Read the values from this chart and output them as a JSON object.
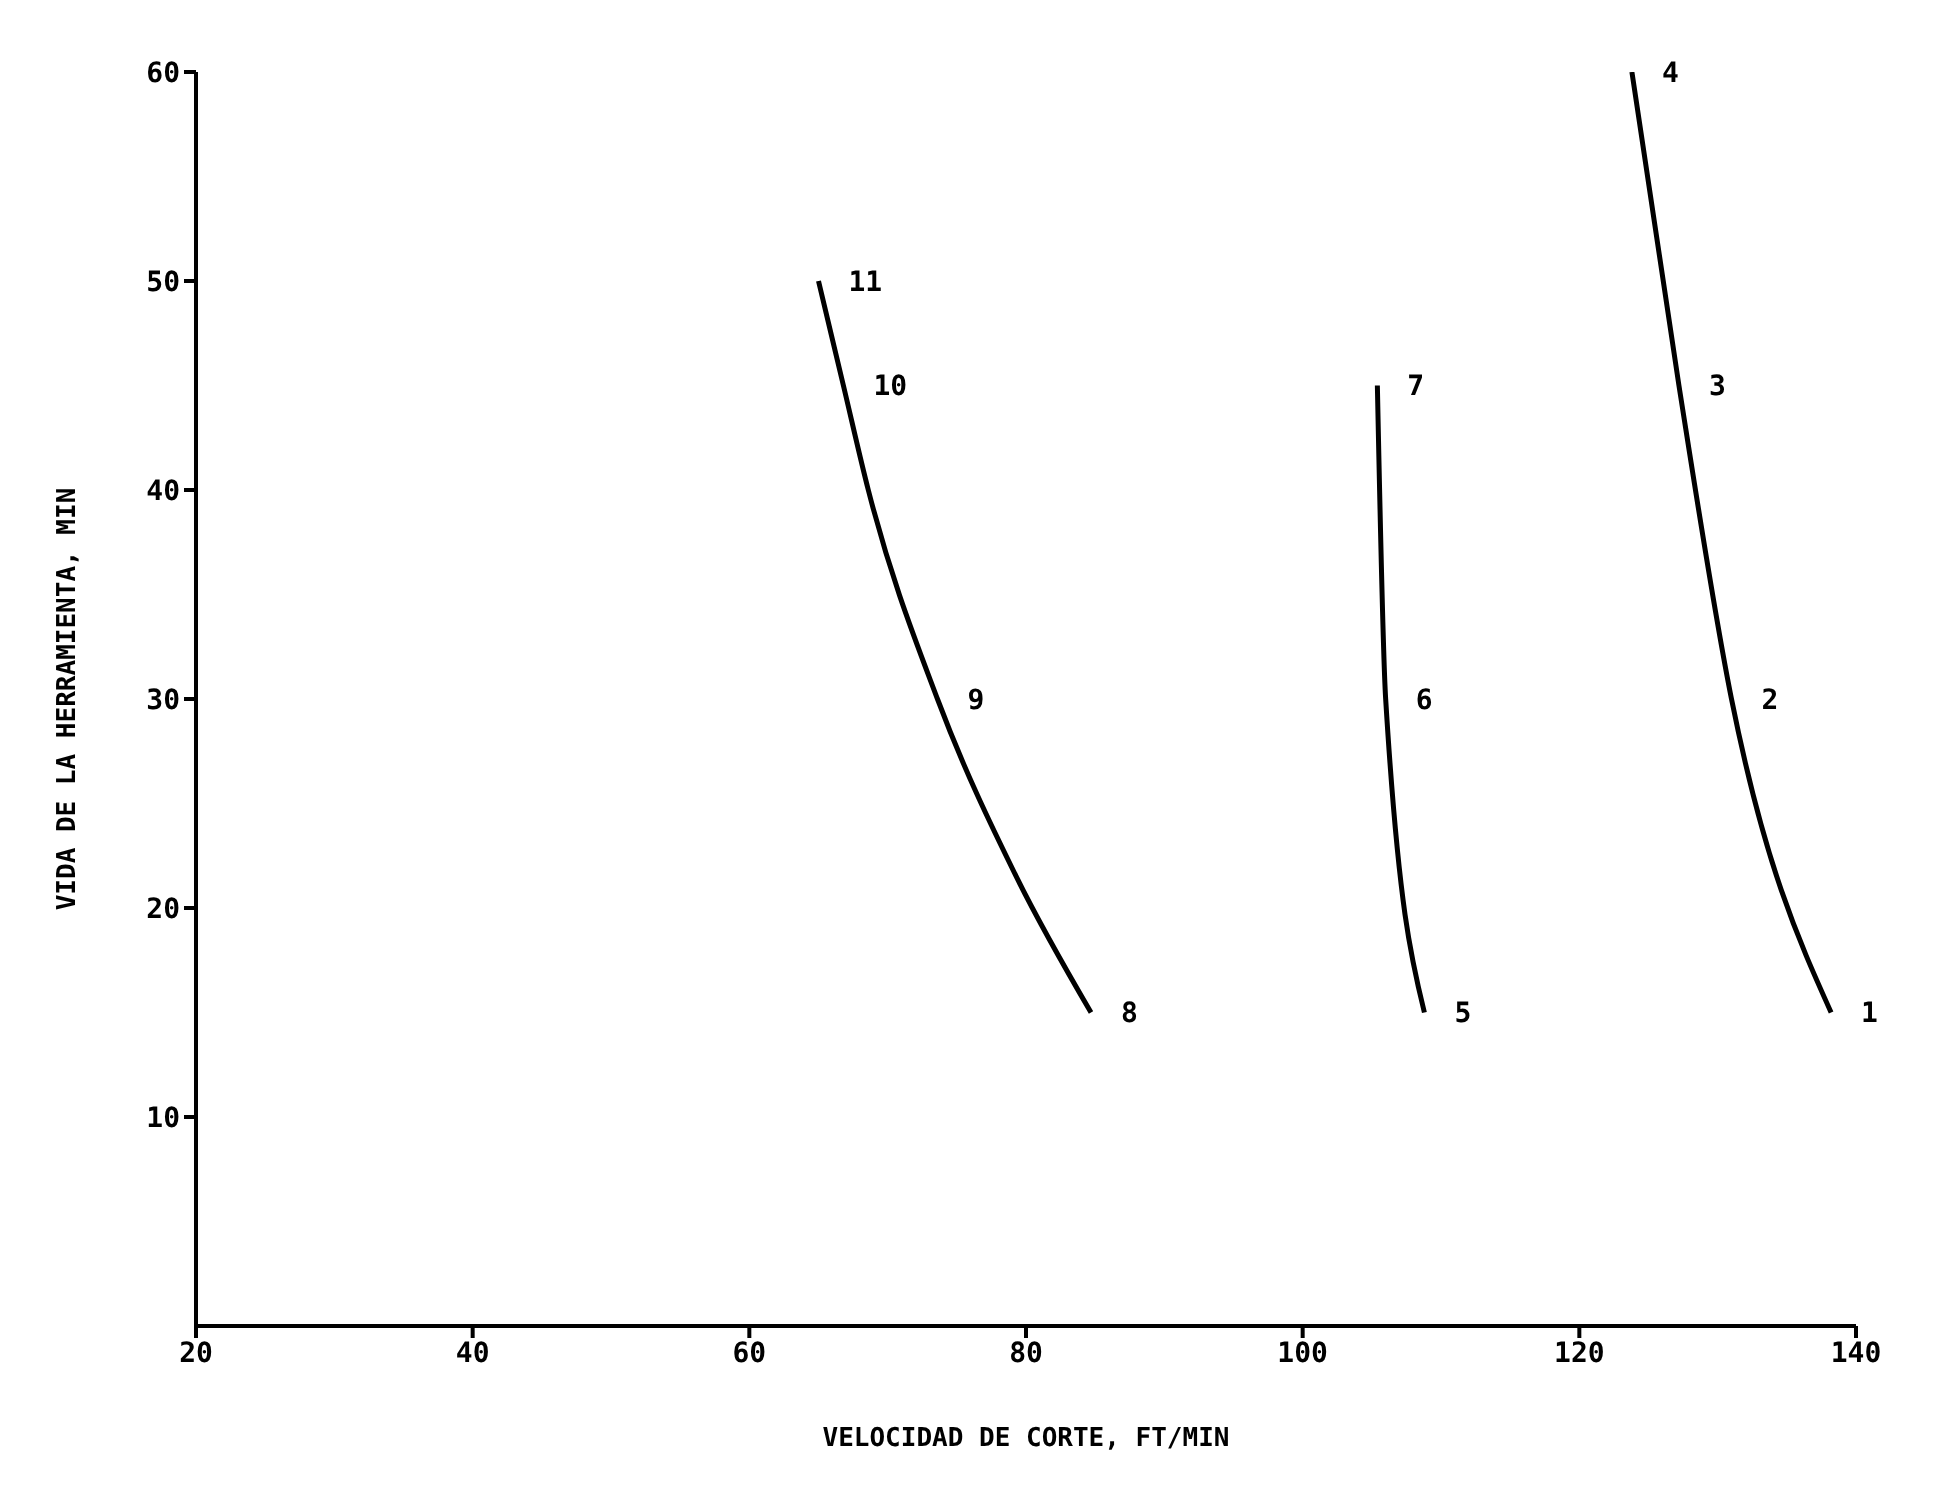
{
  "chart_data": {
    "type": "line",
    "xlabel": "VELOCIDAD DE CORTE, FT/MIN",
    "ylabel": "VIDA DE LA HERRAMIENTA, MIN",
    "series": [
      {
        "color": "#000000",
        "x": [
          65,
          66.8,
          68.6,
          73.6,
          79.3,
          84.7
        ],
        "values": [
          50,
          45,
          40,
          30,
          21.5,
          15
        ]
      },
      {
        "color": "#000000",
        "x": [
          105.4,
          106,
          108.8
        ],
        "values": [
          45,
          30,
          15
        ]
      },
      {
        "color": "#000000",
        "x": [
          123.8,
          127.2,
          131,
          138.2
        ],
        "values": [
          60,
          45,
          30,
          15
        ]
      }
    ],
    "xlim": [
      20,
      140
    ],
    "xticks": [
      20,
      40,
      60,
      80,
      100,
      120,
      140
    ],
    "ylim": [
      0,
      60
    ],
    "yticks": [
      10,
      20,
      30,
      40,
      50,
      60
    ],
    "marker": "none",
    "line_style": "solid",
    "annotations": [
      {
        "text": "1",
        "x": 138.2,
        "y": 15
      },
      {
        "text": "2",
        "x": 131,
        "y": 30
      },
      {
        "text": "3",
        "x": 127.2,
        "y": 45
      },
      {
        "text": "4",
        "x": 123.8,
        "y": 60
      },
      {
        "text": "5",
        "x": 108.8,
        "y": 15
      },
      {
        "text": "6",
        "x": 106,
        "y": 30
      },
      {
        "text": "7",
        "x": 105.4,
        "y": 45
      },
      {
        "text": "8",
        "x": 84.7,
        "y": 15
      },
      {
        "text": "9",
        "x": 73.6,
        "y": 30
      },
      {
        "text": "10",
        "x": 66.8,
        "y": 45
      },
      {
        "text": "11",
        "x": 65,
        "y": 50
      }
    ]
  }
}
